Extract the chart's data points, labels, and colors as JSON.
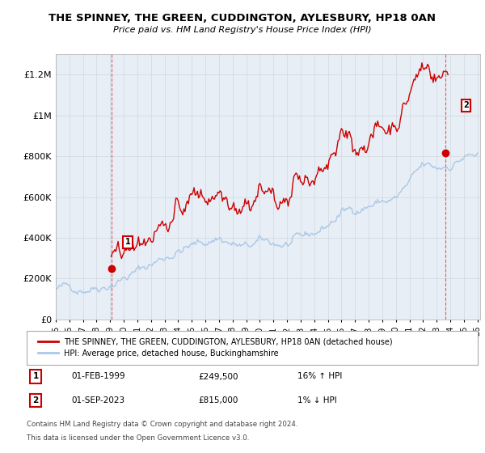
{
  "title": "THE SPINNEY, THE GREEN, CUDDINGTON, AYLESBURY, HP18 0AN",
  "subtitle": "Price paid vs. HM Land Registry's House Price Index (HPI)",
  "ylabel_ticks": [
    "£0",
    "£200K",
    "£400K",
    "£600K",
    "£800K",
    "£1M",
    "£1.2M"
  ],
  "ytick_values": [
    0,
    200000,
    400000,
    600000,
    800000,
    1000000,
    1200000
  ],
  "ylim": [
    0,
    1300000
  ],
  "xlim_start": 1995.0,
  "xlim_end": 2026.2,
  "xtick_years": [
    1995,
    1996,
    1997,
    1998,
    1999,
    2000,
    2001,
    2002,
    2003,
    2004,
    2005,
    2006,
    2007,
    2008,
    2009,
    2010,
    2011,
    2012,
    2013,
    2014,
    2015,
    2016,
    2017,
    2018,
    2019,
    2020,
    2021,
    2022,
    2023,
    2024,
    2025,
    2026
  ],
  "hpi_color": "#aac8e8",
  "price_color": "#cc0000",
  "grid_color": "#d0d8e0",
  "background_color": "#e8eef5",
  "legend_label_price": "THE SPINNEY, THE GREEN, CUDDINGTON, AYLESBURY, HP18 0AN (detached house)",
  "legend_label_hpi": "HPI: Average price, detached house, Buckinghamshire",
  "sale1_date_str": "01-FEB-1999",
  "sale1_price_str": "£249,500",
  "sale1_hpi_str": "16% ↑ HPI",
  "sale2_date_str": "01-SEP-2023",
  "sale2_price_str": "£815,000",
  "sale2_hpi_str": "1% ↓ HPI",
  "sale1_x": 1999.08,
  "sale1_y": 249500,
  "sale2_x": 2023.67,
  "sale2_y": 815000,
  "footer": "Contains HM Land Registry data © Crown copyright and database right 2024.\nThis data is licensed under the Open Government Licence v3.0."
}
